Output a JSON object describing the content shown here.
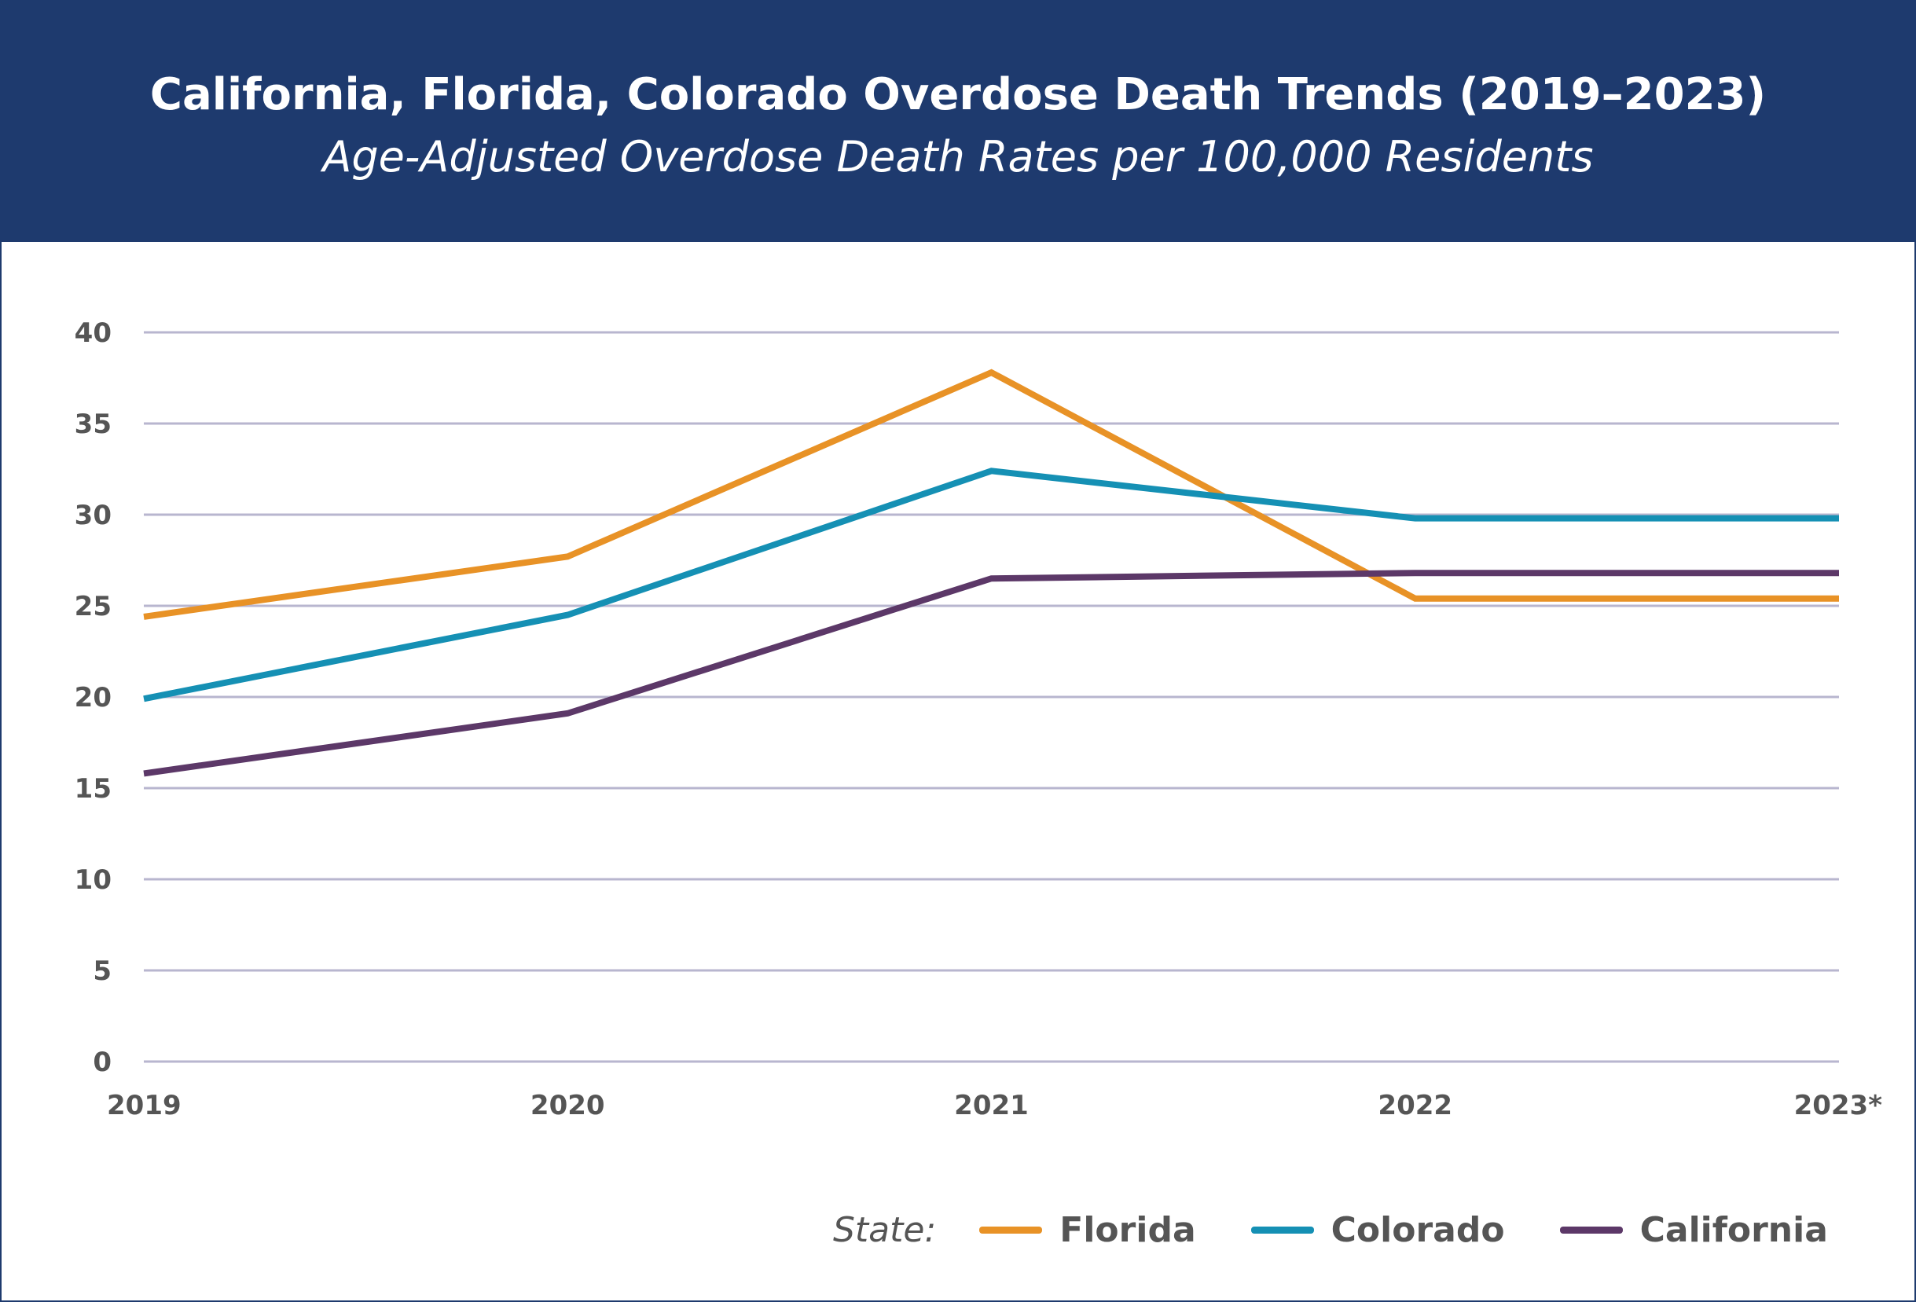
{
  "header": {
    "title": "California, Florida, Colorado Overdose Death Trends (2019–2023)",
    "subtitle": "Age-Adjusted Overdose Death Rates per 100,000 Residents"
  },
  "chart_data": {
    "type": "line",
    "title": "California, Florida, Colorado Overdose Death Trends (2019–2023)",
    "subtitle": "Age-Adjusted Overdose Death Rates per 100,000 Residents",
    "categories": [
      "2019",
      "2020",
      "2021",
      "2022",
      "2023*"
    ],
    "yticks": [
      "0",
      "5",
      "10",
      "15",
      "20",
      "25",
      "30",
      "35",
      "40"
    ],
    "ylim": [
      0,
      40
    ],
    "grid": true,
    "legend_position": "bottom-right",
    "legend_title": "State:",
    "series": [
      {
        "name": "Florida",
        "color": "#e89226",
        "values": [
          24.4,
          27.7,
          37.8,
          25.4,
          25.4
        ]
      },
      {
        "name": "Colorado",
        "color": "#1590b4",
        "values": [
          19.9,
          24.5,
          32.4,
          29.8,
          29.8
        ]
      },
      {
        "name": "California",
        "color": "#5c3868",
        "values": [
          15.8,
          19.1,
          26.5,
          26.8,
          26.8
        ]
      }
    ],
    "grid_color": "#b8b6cf"
  }
}
